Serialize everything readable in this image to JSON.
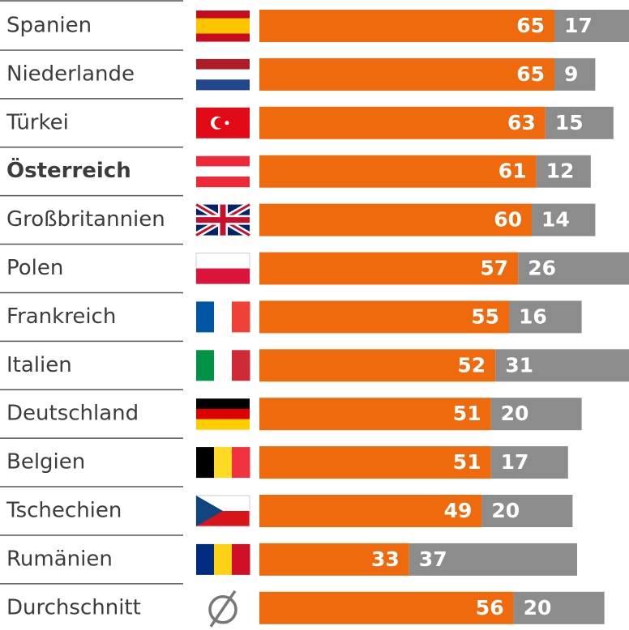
{
  "chart_data": {
    "type": "stacked-barh",
    "categories": [
      "Spanien",
      "Niederlande",
      "Türkei",
      "Österreich",
      "Großbritannien",
      "Polen",
      "Frankreich",
      "Italien",
      "Deutschland",
      "Belgien",
      "Tschechien",
      "Rumänien",
      "Durchschnitt"
    ],
    "highlight": "Österreich",
    "series": [
      {
        "color": "#ee6a0c",
        "values": [
          65,
          65,
          63,
          61,
          60,
          57,
          55,
          52,
          51,
          51,
          49,
          33,
          56
        ]
      },
      {
        "color": "#8c8c8c",
        "values": [
          17,
          9,
          15,
          12,
          14,
          26,
          16,
          31,
          20,
          17,
          20,
          37,
          20
        ]
      }
    ]
  }
}
